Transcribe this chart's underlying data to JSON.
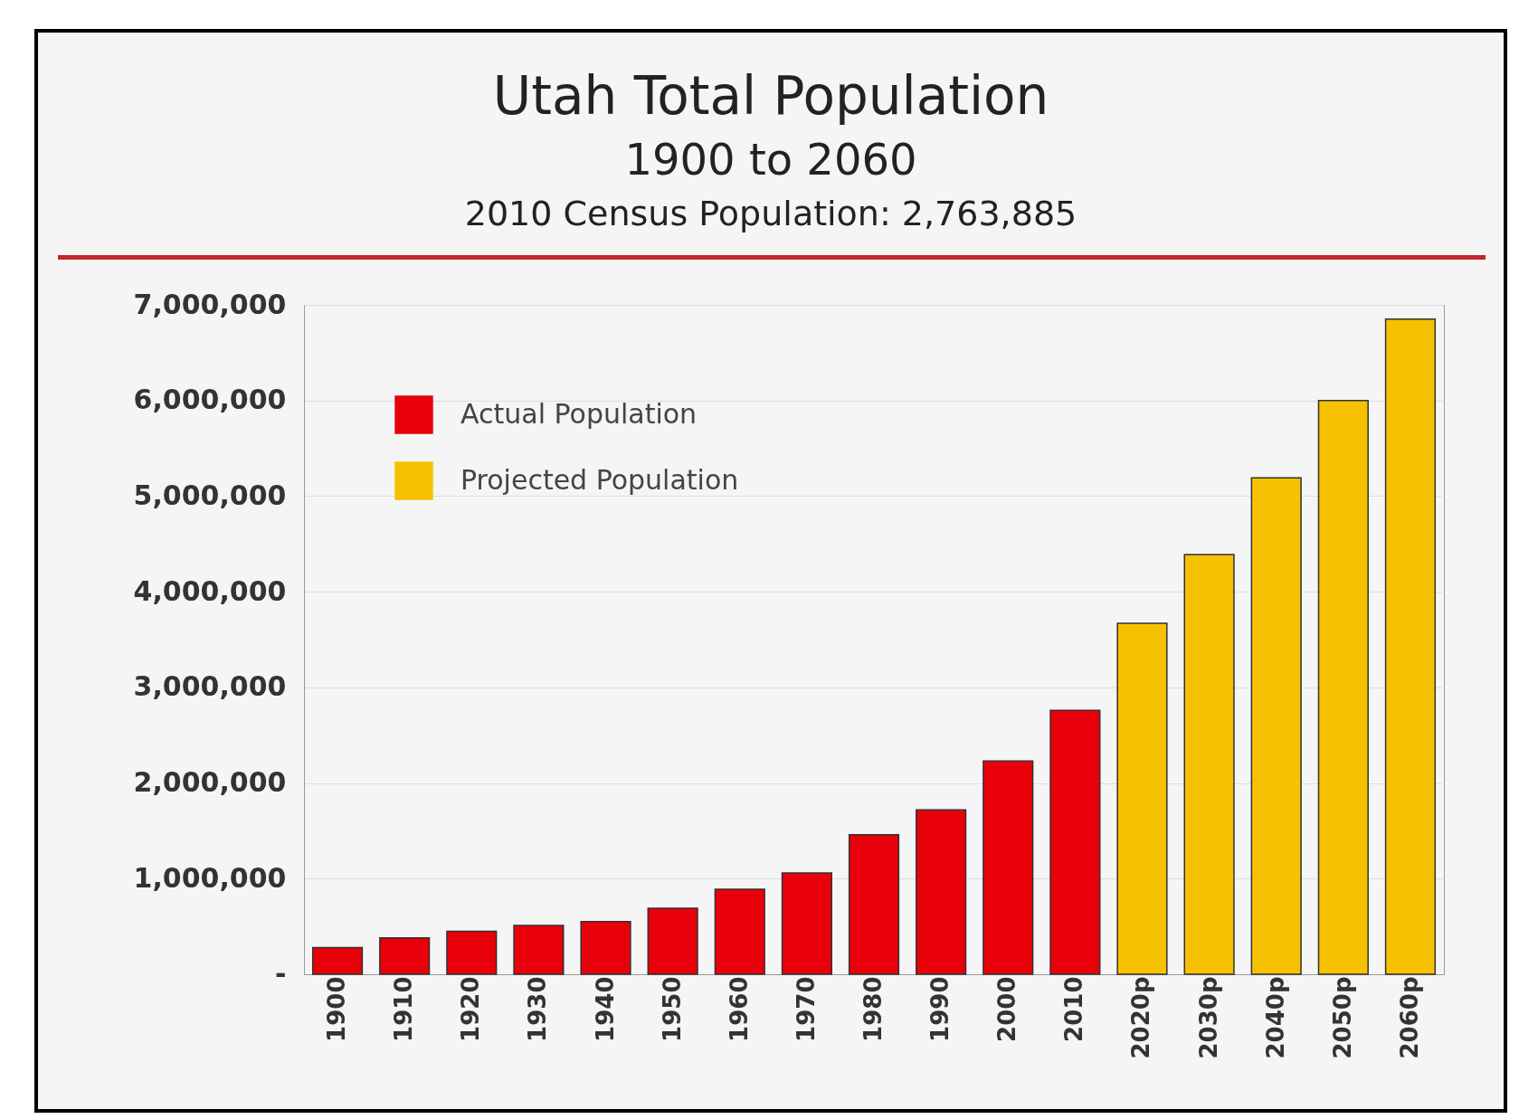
{
  "chart_data": {
    "type": "bar",
    "title": "Utah Total Population",
    "subtitle": "1900 to 2060",
    "annotations": [
      "2010 Census Population: 2,763,885"
    ],
    "categories": [
      "1900",
      "1910",
      "1920",
      "1930",
      "1940",
      "1950",
      "1960",
      "1970",
      "1980",
      "1990",
      "2000",
      "2010",
      "2020p",
      "2030p",
      "2040p",
      "2050p",
      "2060p"
    ],
    "series": [
      {
        "name": "Actual Population",
        "color": "#e8000b",
        "values": [
          280000,
          380000,
          450000,
          510000,
          550000,
          690000,
          890000,
          1060000,
          1460000,
          1720000,
          2230000,
          2760000,
          null,
          null,
          null,
          null,
          null
        ]
      },
      {
        "name": "Projected Population",
        "color": "#f6c100",
        "values": [
          null,
          null,
          null,
          null,
          null,
          null,
          null,
          null,
          null,
          null,
          null,
          null,
          3670000,
          4390000,
          5190000,
          6000000,
          6850000
        ]
      }
    ],
    "ylim": [
      0,
      7000000
    ],
    "yticks": [
      {
        "value": 0,
        "label": "-"
      },
      {
        "value": 1000000,
        "label": "1,000,000"
      },
      {
        "value": 2000000,
        "label": "2,000,000"
      },
      {
        "value": 3000000,
        "label": "3,000,000"
      },
      {
        "value": 4000000,
        "label": "4,000,000"
      },
      {
        "value": 5000000,
        "label": "5,000,000"
      },
      {
        "value": 6000000,
        "label": "6,000,000"
      },
      {
        "value": 7000000,
        "label": "7,000,000"
      }
    ],
    "grid": "y",
    "legend": "top left"
  }
}
